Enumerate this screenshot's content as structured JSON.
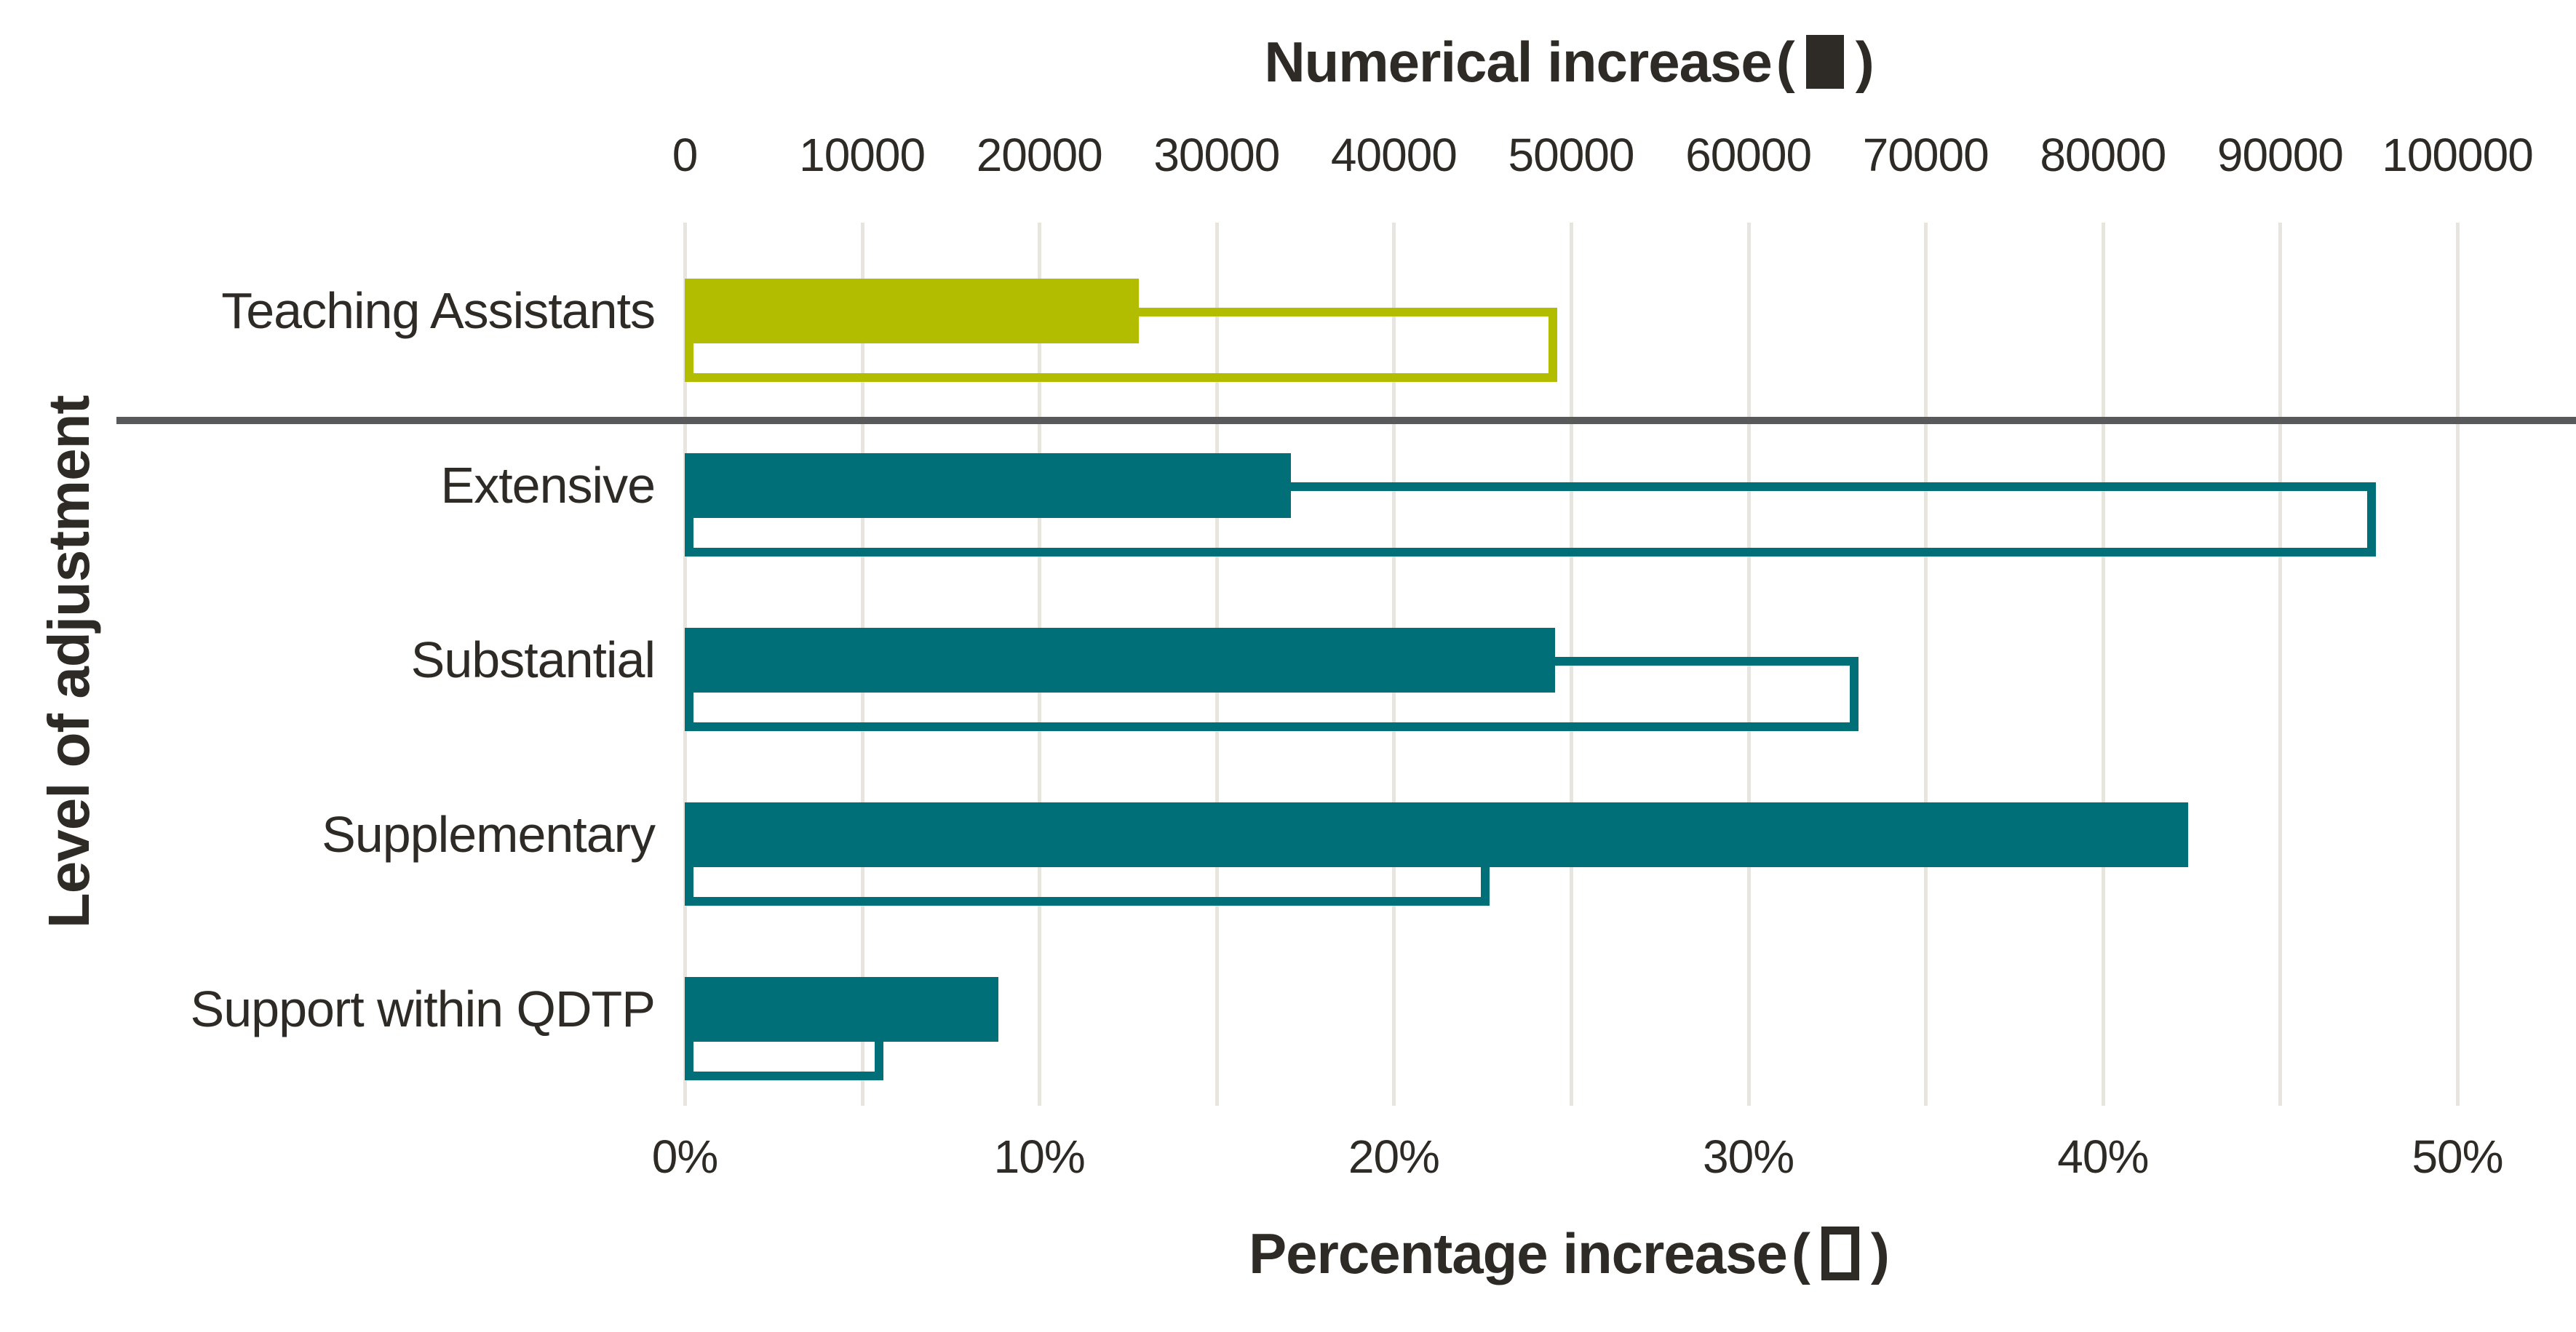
{
  "top_axis": {
    "title": "Numerical increase",
    "paren_open": "(",
    "paren_close": ")"
  },
  "bottom_axis": {
    "title": "Percentage increase",
    "paren_open": "(",
    "paren_close": ")"
  },
  "colors": {
    "teal": "#006f78",
    "olive": "#b3bd00",
    "gridline": "#e7e5de",
    "separator": "#58595b",
    "text": "#2e2a25",
    "background": "#ffffff"
  },
  "chart_data": {
    "type": "bar",
    "orientation": "horizontal",
    "title_top_axis": "Numerical increase (■)",
    "title_bottom_axis": "Percentage increase (□)",
    "ylabel": "Level of adjustment",
    "categories": [
      "Teaching Assistants",
      "Extensive",
      "Substantial",
      "Supplementary",
      "Support within QDTP"
    ],
    "series": [
      {
        "name": "Numerical increase",
        "style": "filled",
        "axis": "top",
        "values": [
          25600,
          34200,
          49100,
          84800,
          17700
        ]
      },
      {
        "name": "Percentage increase",
        "style": "outline",
        "axis": "bottom",
        "values": [
          24.6,
          47.7,
          33.1,
          22.7,
          5.6
        ]
      }
    ],
    "category_colors": [
      "#b3bd00",
      "#006f78",
      "#006f78",
      "#006f78",
      "#006f78"
    ],
    "x_top": {
      "min": 0,
      "max": 100000,
      "ticks": [
        "0",
        "10000",
        "20000",
        "30000",
        "40000",
        "50000",
        "60000",
        "70000",
        "80000",
        "90000",
        "100000"
      ]
    },
    "x_bottom": {
      "min": 0,
      "max": 50,
      "ticks": [
        "0%",
        "10%",
        "20%",
        "30%",
        "40%",
        "50%"
      ]
    },
    "grid": "vertical gridlines every 10000 (top axis) / 5% (bottom axis)",
    "separator_after_category_index": 0,
    "legend_position": "in axis titles (filled square = numerical, hollow square = percentage)"
  }
}
